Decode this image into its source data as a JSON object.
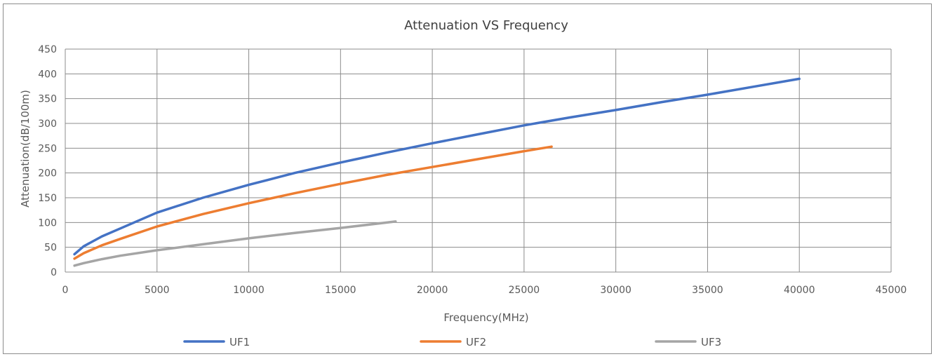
{
  "chart_data": {
    "type": "line",
    "title": "Attenuation VS Frequency",
    "xlabel": "Frequency(MHz)",
    "ylabel": "Attenuation(dB/100m)",
    "xlim": [
      0,
      45000
    ],
    "ylim": [
      0,
      450
    ],
    "x_ticks": [
      0,
      5000,
      10000,
      15000,
      20000,
      25000,
      30000,
      35000,
      40000,
      45000
    ],
    "y_ticks": [
      0,
      50,
      100,
      150,
      200,
      250,
      300,
      350,
      400,
      450
    ],
    "grid": true,
    "legend_position": "bottom",
    "series": [
      {
        "name": "UF1",
        "color": "#4472c4",
        "x": [
          500,
          1000,
          2000,
          3000,
          5000,
          7500,
          10000,
          12500,
          15000,
          17500,
          20000,
          22500,
          25000,
          27500,
          30000,
          32500,
          35000,
          37500,
          40000
        ],
        "y": [
          36,
          52,
          72,
          88,
          120,
          150,
          176,
          200,
          221,
          241,
          260,
          278,
          296,
          312,
          327,
          343,
          358,
          374,
          390
        ]
      },
      {
        "name": "UF2",
        "color": "#ed7d31",
        "x": [
          500,
          1000,
          2000,
          3000,
          5000,
          7500,
          10000,
          12500,
          15000,
          17500,
          20000,
          22500,
          25000,
          26500
        ],
        "y": [
          27,
          38,
          54,
          67,
          92,
          117,
          139,
          159,
          178,
          196,
          212,
          228,
          244,
          253
        ]
      },
      {
        "name": "UF3",
        "color": "#a5a5a5",
        "x": [
          500,
          1000,
          2000,
          3000,
          5000,
          7500,
          10000,
          12500,
          15000,
          18000
        ],
        "y": [
          13,
          18,
          26,
          33,
          44,
          56,
          68,
          79,
          89,
          102
        ]
      }
    ]
  }
}
